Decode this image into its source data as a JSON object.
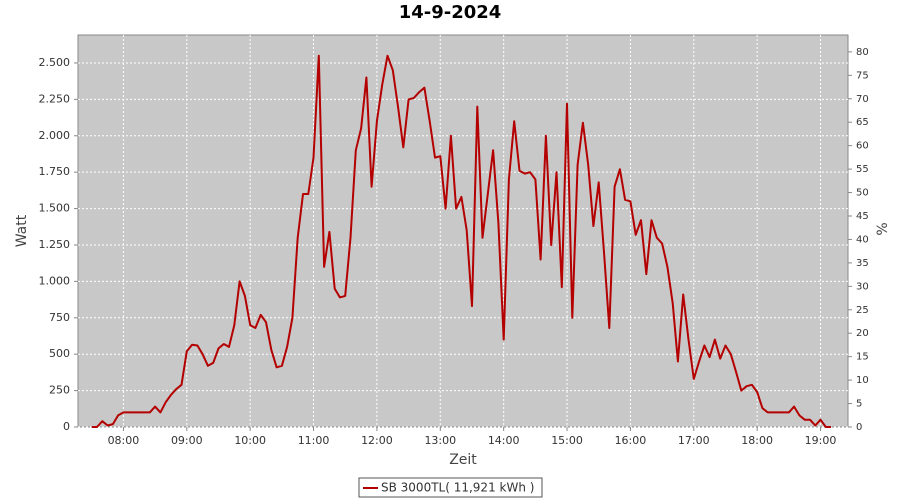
{
  "chart_data": {
    "type": "line",
    "title": "14-9-2024",
    "x_label": "Zeit",
    "y_label": "Watt",
    "y2_label": "%",
    "x": [
      "07:30",
      "07:35",
      "07:40",
      "07:45",
      "07:50",
      "07:55",
      "08:00",
      "08:05",
      "08:10",
      "08:15",
      "08:20",
      "08:25",
      "08:30",
      "08:35",
      "08:40",
      "08:45",
      "08:50",
      "08:55",
      "09:00",
      "09:05",
      "09:10",
      "09:15",
      "09:20",
      "09:25",
      "09:30",
      "09:35",
      "09:40",
      "09:45",
      "09:50",
      "09:55",
      "10:00",
      "10:05",
      "10:10",
      "10:15",
      "10:20",
      "10:25",
      "10:30",
      "10:35",
      "10:40",
      "10:45",
      "10:50",
      "10:55",
      "11:00",
      "11:05",
      "11:10",
      "11:15",
      "11:20",
      "11:25",
      "11:30",
      "11:35",
      "11:40",
      "11:45",
      "11:50",
      "11:55",
      "12:00",
      "12:05",
      "12:10",
      "12:15",
      "12:20",
      "12:25",
      "12:30",
      "12:35",
      "12:40",
      "12:45",
      "12:50",
      "12:55",
      "13:00",
      "13:05",
      "13:10",
      "13:15",
      "13:20",
      "13:25",
      "13:30",
      "13:35",
      "13:40",
      "13:45",
      "13:50",
      "13:55",
      "14:00",
      "14:05",
      "14:10",
      "14:15",
      "14:20",
      "14:25",
      "14:30",
      "14:35",
      "14:40",
      "14:45",
      "14:50",
      "14:55",
      "15:00",
      "15:05",
      "15:10",
      "15:15",
      "15:20",
      "15:25",
      "15:30",
      "15:35",
      "15:40",
      "15:45",
      "15:50",
      "15:55",
      "16:00",
      "16:05",
      "16:10",
      "16:15",
      "16:20",
      "16:25",
      "16:30",
      "16:35",
      "16:40",
      "16:45",
      "16:50",
      "16:55",
      "17:00",
      "17:05",
      "17:10",
      "17:15",
      "17:20",
      "17:25",
      "17:30",
      "17:35",
      "17:40",
      "17:45",
      "17:50",
      "17:55",
      "18:00",
      "18:05",
      "18:10",
      "18:15",
      "18:20",
      "18:25",
      "18:30",
      "18:35",
      "18:40",
      "18:45",
      "18:50",
      "18:55",
      "19:00",
      "19:05",
      "19:10"
    ],
    "series": [
      {
        "name": "SB 3000TL( 11,921 kWh )",
        "color": "#b40000",
        "values": [
          0,
          0,
          40,
          10,
          20,
          80,
          100,
          100,
          100,
          100,
          100,
          100,
          140,
          100,
          170,
          220,
          260,
          290,
          520,
          565,
          560,
          500,
          420,
          440,
          540,
          570,
          550,
          700,
          1000,
          900,
          700,
          680,
          770,
          720,
          530,
          410,
          420,
          550,
          750,
          1300,
          1600,
          1600,
          1850,
          2550,
          1100,
          1340,
          950,
          890,
          900,
          1300,
          1900,
          2050,
          2400,
          1650,
          2100,
          2350,
          2550,
          2450,
          2200,
          1920,
          2250,
          2260,
          2300,
          2330,
          2100,
          1850,
          1860,
          1500,
          2000,
          1500,
          1580,
          1350,
          830,
          2200,
          1300,
          1600,
          1900,
          1400,
          600,
          1700,
          2100,
          1760,
          1740,
          1750,
          1700,
          1150,
          2000,
          1250,
          1750,
          960,
          2220,
          750,
          1800,
          2090,
          1800,
          1380,
          1680,
          1200,
          680,
          1650,
          1770,
          1560,
          1550,
          1320,
          1420,
          1050,
          1420,
          1300,
          1260,
          1100,
          850,
          450,
          910,
          600,
          330,
          450,
          560,
          480,
          600,
          470,
          560,
          500,
          380,
          250,
          280,
          290,
          240,
          130,
          100,
          100,
          100,
          100,
          100,
          140,
          80,
          50,
          50,
          10,
          50,
          0,
          0
        ]
      }
    ],
    "xlim": [
      "07:17",
      "19:26"
    ],
    "xticks": [
      "08:00",
      "09:00",
      "10:00",
      "11:00",
      "12:00",
      "13:00",
      "14:00",
      "15:00",
      "16:00",
      "17:00",
      "18:00",
      "19:00"
    ],
    "ylim": [
      0,
      2692
    ],
    "yticks": [
      0,
      250,
      500,
      750,
      {
        "value": 1000,
        "label": "1.000"
      },
      {
        "value": 1250,
        "label": "1.250"
      },
      {
        "value": 1500,
        "label": "1.500"
      },
      {
        "value": 1750,
        "label": "1.750"
      },
      {
        "value": 2000,
        "label": "2.000"
      },
      {
        "value": 2250,
        "label": "2.250"
      },
      {
        "value": 2500,
        "label": "2.500"
      }
    ],
    "y2lim": [
      0,
      83.6
    ],
    "y2ticks": [
      0,
      5,
      10,
      15,
      20,
      25,
      30,
      35,
      40,
      45,
      50,
      55,
      60,
      65,
      70,
      75,
      80
    ],
    "grid": true,
    "legend": "bottom"
  }
}
